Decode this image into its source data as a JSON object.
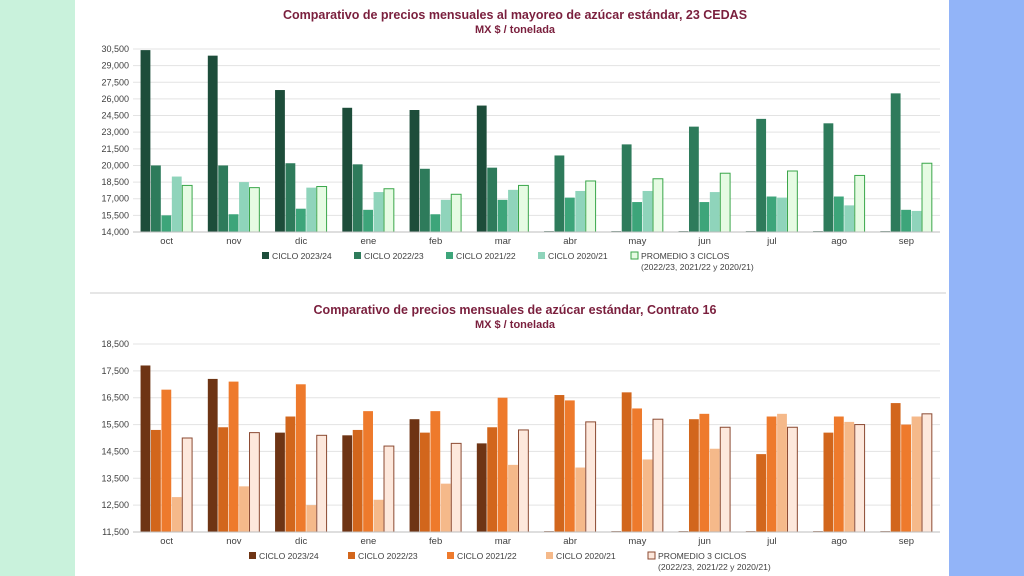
{
  "chart_data": [
    {
      "type": "bar",
      "title": "Comparativo de precios mensuales al mayoreo de azúcar estándar, 23 CEDAS",
      "subtitle": "MX $ / tonelada",
      "categories": [
        "oct",
        "nov",
        "dic",
        "ene",
        "feb",
        "mar",
        "abr",
        "may",
        "jun",
        "jul",
        "ago",
        "sep"
      ],
      "ylim": [
        14000,
        30500
      ],
      "yticks": [
        "14,000",
        "15,500",
        "17,000",
        "18,500",
        "20,000",
        "21,500",
        "23,000",
        "24,500",
        "26,000",
        "27,500",
        "29,000",
        "30,500"
      ],
      "ytick_values": [
        14000,
        15500,
        17000,
        18500,
        20000,
        21500,
        23000,
        24500,
        26000,
        27500,
        29000,
        30500
      ],
      "grid": true,
      "legend_position": "bottom",
      "series": [
        {
          "name": "CICLO 2023/24",
          "color": "#1d4d3a",
          "outline": false,
          "values": [
            30400,
            29900,
            26800,
            25200,
            25000,
            25400,
            14000,
            14000,
            14000,
            14000,
            14000,
            14000
          ]
        },
        {
          "name": "CICLO 2022/23",
          "color": "#2e7b5b",
          "outline": false,
          "values": [
            20000,
            20000,
            20200,
            20100,
            19700,
            19800,
            20900,
            21900,
            23500,
            24200,
            23800,
            26500
          ]
        },
        {
          "name": "CICLO 2021/22",
          "color": "#3da57a",
          "outline": false,
          "values": [
            15500,
            15600,
            16100,
            16000,
            15600,
            16900,
            17100,
            16700,
            16700,
            17200,
            17200,
            16000
          ]
        },
        {
          "name": "CICLO 2020/21",
          "color": "#8fd4bb",
          "outline": false,
          "values": [
            19000,
            18500,
            18000,
            17600,
            16900,
            17800,
            17700,
            17700,
            17600,
            17100,
            16400,
            15900
          ]
        },
        {
          "name": "PROMEDIO 3 CICLOS",
          "color": "#e6fbe3",
          "stroke": "#3aa64a",
          "outline": true,
          "values": [
            18200,
            18000,
            18100,
            17900,
            17400,
            18200,
            18600,
            18800,
            19300,
            19500,
            19100,
            20200
          ]
        }
      ],
      "legend_note": "(2022/23, 2021/22 y 2020/21)"
    },
    {
      "type": "bar",
      "title": "Comparativo de precios mensuales de azúcar estándar, Contrato 16",
      "subtitle": "MX $ / tonelada",
      "categories": [
        "oct",
        "nov",
        "dic",
        "ene",
        "feb",
        "mar",
        "abr",
        "may",
        "jun",
        "jul",
        "ago",
        "sep"
      ],
      "ylim": [
        11500,
        18500
      ],
      "yticks": [
        "11,500",
        "12,500",
        "13,500",
        "14,500",
        "15,500",
        "16,500",
        "17,500",
        "18,500"
      ],
      "ytick_values": [
        11500,
        12500,
        13500,
        14500,
        15500,
        16500,
        17500,
        18500
      ],
      "grid": true,
      "legend_position": "bottom",
      "series": [
        {
          "name": "CICLO 2023/24",
          "color": "#6e3414",
          "outline": false,
          "values": [
            17700,
            17200,
            15200,
            15100,
            15700,
            14800,
            11500,
            11500,
            11500,
            11500,
            11500,
            11500
          ]
        },
        {
          "name": "CICLO 2022/23",
          "color": "#d2661c",
          "outline": false,
          "values": [
            15300,
            15400,
            15800,
            15300,
            15200,
            15400,
            16600,
            16700,
            15700,
            14400,
            15200,
            16300
          ]
        },
        {
          "name": "CICLO 2021/22",
          "color": "#ee7a2c",
          "outline": false,
          "values": [
            16800,
            17100,
            17000,
            16000,
            16000,
            16500,
            16400,
            16100,
            15900,
            15800,
            15800,
            15500
          ]
        },
        {
          "name": "CICLO 2020/21",
          "color": "#f5b98a",
          "outline": false,
          "values": [
            12800,
            13200,
            12500,
            12700,
            13300,
            14000,
            13900,
            14200,
            14600,
            15900,
            15600,
            15800
          ]
        },
        {
          "name": "PROMEDIO 3 CICLOS",
          "color": "#fde8dc",
          "stroke": "#8b4a32",
          "outline": true,
          "values": [
            15000,
            15200,
            15100,
            14700,
            14800,
            15300,
            15600,
            15700,
            15400,
            15400,
            15500,
            15900
          ]
        }
      ],
      "legend_note": "(2022/23, 2021/22 y 2020/21)"
    }
  ]
}
